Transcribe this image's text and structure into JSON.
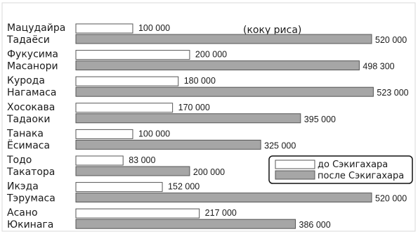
{
  "chart_data": {
    "type": "bar",
    "orientation": "horizontal",
    "unit_label": "(коку риса)",
    "categories": [
      [
        "Мацудайра",
        "Тадаёси"
      ],
      [
        "Фукусима",
        "Масанори"
      ],
      [
        "Курода",
        "Нагамаса"
      ],
      [
        "Хосокава",
        "Тадаоки"
      ],
      [
        "Танака",
        "Ёсимаса"
      ],
      [
        "Тодо",
        "Такатора"
      ],
      [
        "Икэда",
        "Тэрумаса"
      ],
      [
        "Асано",
        "Юкинага"
      ]
    ],
    "series": [
      {
        "name": "до Сэкигахара",
        "color": "#ffffff",
        "values": [
          100000,
          200000,
          180000,
          170000,
          100000,
          83000,
          152000,
          217000
        ],
        "labels": [
          "100 000",
          "200 000",
          "180 000",
          "170 000",
          "100 000",
          "83 000",
          "152 000",
          "217 000"
        ]
      },
      {
        "name": "после Сэкигахара",
        "color": "#a6a6a6",
        "values": [
          520000,
          498300,
          523000,
          395000,
          325000,
          200000,
          520000,
          386000
        ],
        "labels": [
          "520 000",
          "498 300",
          "523 000",
          "395 000",
          "325 000",
          "200 000",
          "520 000",
          "386 000"
        ]
      }
    ],
    "legend": {
      "position": "right"
    },
    "grid": false
  }
}
